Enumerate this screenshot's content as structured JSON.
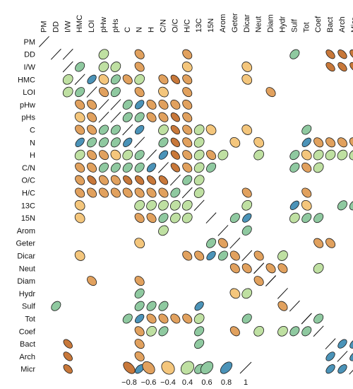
{
  "chart_data": {
    "type": "heatmap",
    "style": "ellipse correlogram (corrplot); upper and lower triangles, only significant cells drawn",
    "variables": [
      "PM",
      "DD",
      "I/W",
      "HMC",
      "LOI",
      "pHw",
      "pHs",
      "C",
      "N",
      "H",
      "C/N",
      "O/C",
      "H/C",
      "13C",
      "15N",
      "Arom",
      "Geter",
      "Dicar",
      "Neut",
      "Diam",
      "Hydr",
      "Sulf",
      "Tot",
      "Coef",
      "Bact",
      "Arch",
      "Micr"
    ],
    "colors": {
      "-0.8": "#c8783a",
      "-0.6": "#e1a15e",
      "-0.4": "#f4c67c",
      "0.4": "#bfe0a2",
      "0.6": "#8fc9a0",
      "0.8": "#4b93b8",
      "1": "#222222"
    },
    "legend_ticks": [
      "−0.8",
      "−0.6",
      "−0.4",
      "0.4",
      "0.6",
      "0.8",
      "1"
    ],
    "legend_values": [
      -0.8,
      -0.6,
      -0.4,
      0.4,
      0.6,
      0.8,
      1
    ],
    "cells": [
      [
        0,
        0,
        1
      ],
      [
        1,
        1,
        1
      ],
      [
        2,
        2,
        1
      ],
      [
        3,
        3,
        1
      ],
      [
        4,
        4,
        1
      ],
      [
        5,
        5,
        1
      ],
      [
        6,
        6,
        1
      ],
      [
        7,
        7,
        1
      ],
      [
        8,
        8,
        1
      ],
      [
        9,
        9,
        1
      ],
      [
        10,
        10,
        1
      ],
      [
        11,
        11,
        1
      ],
      [
        12,
        12,
        1
      ],
      [
        13,
        13,
        1
      ],
      [
        14,
        14,
        1
      ],
      [
        15,
        15,
        1
      ],
      [
        16,
        16,
        1
      ],
      [
        17,
        17,
        1
      ],
      [
        18,
        18,
        1
      ],
      [
        19,
        19,
        1
      ],
      [
        20,
        20,
        1
      ],
      [
        21,
        21,
        1
      ],
      [
        22,
        22,
        1
      ],
      [
        23,
        23,
        1
      ],
      [
        24,
        24,
        1
      ],
      [
        25,
        25,
        1
      ],
      [
        26,
        26,
        1
      ],
      [
        1,
        2,
        1
      ],
      [
        1,
        5,
        0.4
      ],
      [
        1,
        8,
        -0.6
      ],
      [
        1,
        12,
        -0.6
      ],
      [
        1,
        21,
        0.6
      ],
      [
        1,
        24,
        -0.8
      ],
      [
        1,
        25,
        -0.8
      ],
      [
        1,
        26,
        -0.8
      ],
      [
        2,
        3,
        0.6
      ],
      [
        2,
        5,
        0.4
      ],
      [
        2,
        6,
        0.4
      ],
      [
        2,
        8,
        -0.6
      ],
      [
        2,
        12,
        -0.4
      ],
      [
        2,
        17,
        -0.4
      ],
      [
        2,
        24,
        -0.8
      ],
      [
        2,
        25,
        -0.8
      ],
      [
        2,
        26,
        -0.8
      ],
      [
        3,
        2,
        0.4
      ],
      [
        3,
        4,
        0.8
      ],
      [
        3,
        5,
        -0.4
      ],
      [
        3,
        6,
        0.6
      ],
      [
        3,
        7,
        -0.6
      ],
      [
        3,
        8,
        0.4
      ],
      [
        3,
        10,
        -0.6
      ],
      [
        3,
        11,
        -0.8
      ],
      [
        3,
        12,
        -0.6
      ],
      [
        3,
        17,
        -0.4
      ],
      [
        4,
        2,
        0.4
      ],
      [
        4,
        3,
        0.6
      ],
      [
        4,
        5,
        -0.6
      ],
      [
        4,
        6,
        0.6
      ],
      [
        4,
        8,
        -0.6
      ],
      [
        4,
        10,
        -0.4
      ],
      [
        4,
        12,
        -0.6
      ],
      [
        4,
        19,
        -0.6
      ],
      [
        5,
        3,
        -0.6
      ],
      [
        5,
        4,
        -0.6
      ],
      [
        5,
        6,
        1
      ],
      [
        5,
        7,
        0.6
      ],
      [
        5,
        8,
        0.8
      ],
      [
        5,
        9,
        -0.6
      ],
      [
        5,
        10,
        -0.6
      ],
      [
        5,
        11,
        -0.6
      ],
      [
        5,
        12,
        -0.6
      ],
      [
        6,
        3,
        -0.4
      ],
      [
        6,
        4,
        -0.6
      ],
      [
        6,
        5,
        1
      ],
      [
        6,
        7,
        0.6
      ],
      [
        6,
        8,
        0.6
      ],
      [
        6,
        9,
        -0.6
      ],
      [
        6,
        10,
        -0.6
      ],
      [
        6,
        11,
        -0.8
      ],
      [
        6,
        12,
        -0.6
      ],
      [
        7,
        3,
        -0.6
      ],
      [
        7,
        4,
        -0.6
      ],
      [
        7,
        5,
        0.6
      ],
      [
        7,
        6,
        0.6
      ],
      [
        7,
        8,
        0.8
      ],
      [
        7,
        10,
        0.4
      ],
      [
        7,
        11,
        -0.8
      ],
      [
        7,
        12,
        -0.6
      ],
      [
        7,
        13,
        0.4
      ],
      [
        7,
        14,
        -0.4
      ],
      [
        7,
        17,
        -0.4
      ],
      [
        7,
        22,
        0.6
      ],
      [
        8,
        3,
        0.8
      ],
      [
        8,
        4,
        0.6
      ],
      [
        8,
        5,
        0.6
      ],
      [
        8,
        6,
        0.6
      ],
      [
        8,
        7,
        0.8
      ],
      [
        8,
        10,
        0.6
      ],
      [
        8,
        11,
        -0.8
      ],
      [
        8,
        12,
        -0.6
      ],
      [
        8,
        13,
        0.4
      ],
      [
        8,
        16,
        -0.4
      ],
      [
        8,
        18,
        -0.4
      ],
      [
        8,
        22,
        0.8
      ],
      [
        8,
        23,
        -0.6
      ],
      [
        8,
        24,
        -0.6
      ],
      [
        8,
        25,
        -0.6
      ],
      [
        8,
        26,
        -0.6
      ],
      [
        9,
        3,
        0.4
      ],
      [
        9,
        4,
        -0.6
      ],
      [
        9,
        5,
        -0.6
      ],
      [
        9,
        6,
        -0.4
      ],
      [
        9,
        7,
        0.4
      ],
      [
        9,
        8,
        0.6
      ],
      [
        9,
        10,
        0.8
      ],
      [
        9,
        11,
        -0.8
      ],
      [
        9,
        12,
        -0.6
      ],
      [
        9,
        13,
        0.4
      ],
      [
        9,
        14,
        -0.6
      ],
      [
        9,
        15,
        0.4
      ],
      [
        9,
        18,
        0.4
      ],
      [
        9,
        21,
        0.6
      ],
      [
        9,
        22,
        -0.4
      ],
      [
        9,
        23,
        0.4
      ],
      [
        9,
        24,
        0.4
      ],
      [
        9,
        25,
        0.4
      ],
      [
        9,
        26,
        0.4
      ],
      [
        10,
        3,
        -0.6
      ],
      [
        10,
        4,
        -0.6
      ],
      [
        10,
        5,
        0.6
      ],
      [
        10,
        6,
        0.6
      ],
      [
        10,
        7,
        0.6
      ],
      [
        10,
        8,
        0.6
      ],
      [
        10,
        9,
        0.8
      ],
      [
        10,
        11,
        -0.8
      ],
      [
        10,
        12,
        -0.6
      ],
      [
        10,
        13,
        0.4
      ],
      [
        10,
        14,
        0.6
      ],
      [
        10,
        21,
        0.6
      ],
      [
        10,
        22,
        -0.6
      ],
      [
        10,
        23,
        0.4
      ],
      [
        11,
        3,
        -0.6
      ],
      [
        11,
        4,
        -0.8
      ],
      [
        11,
        5,
        -0.6
      ],
      [
        11,
        6,
        -0.6
      ],
      [
        11,
        7,
        -0.8
      ],
      [
        11,
        8,
        -0.8
      ],
      [
        11,
        9,
        -0.8
      ],
      [
        11,
        10,
        -0.8
      ],
      [
        11,
        12,
        0.6
      ],
      [
        11,
        13,
        0.4
      ],
      [
        12,
        3,
        -0.6
      ],
      [
        12,
        4,
        -0.6
      ],
      [
        12,
        5,
        -0.6
      ],
      [
        12,
        6,
        -0.6
      ],
      [
        12,
        7,
        -0.6
      ],
      [
        12,
        8,
        -0.6
      ],
      [
        12,
        9,
        -0.6
      ],
      [
        12,
        10,
        -0.6
      ],
      [
        12,
        11,
        0.6
      ],
      [
        12,
        13,
        0.4
      ],
      [
        12,
        17,
        -0.6
      ],
      [
        12,
        22,
        -0.6
      ],
      [
        13,
        3,
        -0.4
      ],
      [
        13,
        8,
        0.4
      ],
      [
        13,
        9,
        0.4
      ],
      [
        13,
        10,
        0.4
      ],
      [
        13,
        11,
        0.4
      ],
      [
        13,
        12,
        0.4
      ],
      [
        13,
        17,
        0.4
      ],
      [
        13,
        21,
        0.8
      ],
      [
        13,
        22,
        -0.4
      ],
      [
        13,
        25,
        0.6
      ],
      [
        13,
        26,
        0.6
      ],
      [
        14,
        3,
        -0.4
      ],
      [
        14,
        8,
        -0.6
      ],
      [
        14,
        9,
        -0.6
      ],
      [
        14,
        10,
        0.6
      ],
      [
        14,
        11,
        0.4
      ],
      [
        14,
        12,
        0.4
      ],
      [
        14,
        16,
        0.6
      ],
      [
        14,
        17,
        0.8
      ],
      [
        14,
        21,
        0.4
      ],
      [
        14,
        22,
        0.6
      ],
      [
        14,
        23,
        0.6
      ],
      [
        15,
        10,
        0.4
      ],
      [
        15,
        17,
        0.6
      ],
      [
        16,
        8,
        -0.4
      ],
      [
        16,
        14,
        0.6
      ],
      [
        16,
        15,
        -0.6
      ],
      [
        16,
        23,
        -0.6
      ],
      [
        16,
        24,
        -0.6
      ],
      [
        17,
        3,
        -0.4
      ],
      [
        17,
        12,
        -0.6
      ],
      [
        17,
        13,
        -0.6
      ],
      [
        17,
        14,
        0.8
      ],
      [
        17,
        15,
        0.6
      ],
      [
        17,
        16,
        -0.6
      ],
      [
        17,
        18,
        -0.6
      ],
      [
        17,
        20,
        0.4
      ],
      [
        18,
        16,
        -0.6
      ],
      [
        18,
        17,
        -0.6
      ],
      [
        18,
        18,
        1
      ],
      [
        18,
        19,
        -0.6
      ],
      [
        18,
        20,
        -0.6
      ],
      [
        18,
        23,
        0.4
      ],
      [
        19,
        4,
        -0.6
      ],
      [
        19,
        8,
        -0.6
      ],
      [
        19,
        18,
        -0.6
      ],
      [
        19,
        19,
        1
      ],
      [
        20,
        8,
        0.6
      ],
      [
        20,
        16,
        -0.4
      ],
      [
        20,
        17,
        0.4
      ],
      [
        21,
        1,
        0.6
      ],
      [
        21,
        8,
        0.6
      ],
      [
        21,
        9,
        0.6
      ],
      [
        21,
        10,
        0.6
      ],
      [
        21,
        13,
        0.8
      ],
      [
        21,
        20,
        -0.6
      ],
      [
        22,
        7,
        0.6
      ],
      [
        22,
        8,
        0.8
      ],
      [
        22,
        9,
        -0.6
      ],
      [
        22,
        10,
        -0.6
      ],
      [
        22,
        11,
        -0.6
      ],
      [
        22,
        12,
        -0.6
      ],
      [
        22,
        13,
        0.4
      ],
      [
        22,
        17,
        0.6
      ],
      [
        22,
        22,
        1
      ],
      [
        22,
        23,
        0.6
      ],
      [
        23,
        8,
        -0.6
      ],
      [
        23,
        9,
        0.4
      ],
      [
        23,
        10,
        0.6
      ],
      [
        23,
        13,
        0.6
      ],
      [
        23,
        16,
        -0.6
      ],
      [
        23,
        18,
        0.4
      ],
      [
        23,
        20,
        0.4
      ],
      [
        23,
        21,
        0.6
      ],
      [
        23,
        22,
        0.6
      ],
      [
        24,
        2,
        -0.8
      ],
      [
        24,
        8,
        -0.6
      ],
      [
        24,
        13,
        0.6
      ],
      [
        24,
        25,
        0.8
      ],
      [
        24,
        26,
        0.8
      ],
      [
        25,
        2,
        -0.8
      ],
      [
        25,
        8,
        -0.6
      ],
      [
        25,
        24,
        0.8
      ],
      [
        25,
        26,
        0.8
      ],
      [
        26,
        2,
        -0.8
      ],
      [
        26,
        8,
        0.8
      ],
      [
        26,
        13,
        0.6
      ],
      [
        26,
        24,
        0.8
      ],
      [
        26,
        25,
        0.8
      ]
    ]
  }
}
